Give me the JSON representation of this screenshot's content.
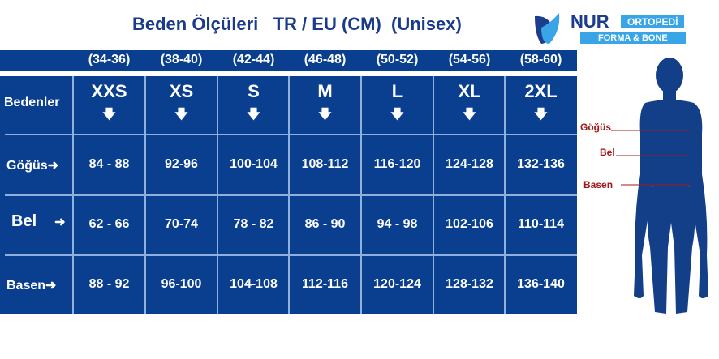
{
  "title": "Beden Ölçüleri   TR / EU (CM)  (Unisex)",
  "logo": {
    "brand": "NUR",
    "sub": "ORTOPEDİ",
    "tagline": "FORMA & BONE"
  },
  "colors": {
    "table": "#0a3f8f",
    "title": "#1a3a8a",
    "figure": "#123f88",
    "labels": "#a01818"
  },
  "size_ranges": [
    "(34-36)",
    "(38-40)",
    "(42-44)",
    "(46-48)",
    "(50-52)",
    "(54-56)",
    "(58-60)"
  ],
  "row_header": "Bedenler",
  "sizes": [
    "XXS",
    "XS",
    "S",
    "M",
    "L",
    "XL",
    "2XL"
  ],
  "rows": [
    {
      "label": "Göğüs",
      "values": [
        "84 - 88",
        "92-96",
        "100-104",
        "108-112",
        "116-120",
        "124-128",
        "132-136"
      ]
    },
    {
      "label": "Bel",
      "values": [
        "62 - 66",
        "70-74",
        "78 - 82",
        "86 - 90",
        "94 - 98",
        "102-106",
        "110-114"
      ]
    },
    {
      "label": "Basen",
      "values": [
        "88 - 92",
        "96-100",
        "104-108",
        "112-116",
        "120-124",
        "128-132",
        "136-140"
      ]
    }
  ],
  "figure_labels": [
    "Göğüs",
    "Bel",
    "Basen"
  ],
  "arrow_down": "↓ down-arrow-icon",
  "arrow_right": "➜ right-arrow-icon"
}
